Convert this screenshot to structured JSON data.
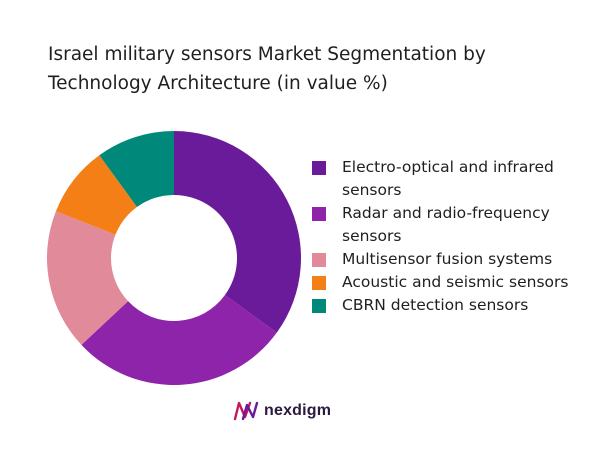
{
  "chart_data": {
    "type": "pie",
    "donut": true,
    "title": "Israel military sensors Market Segmentation by Technology Architecture (in value %)",
    "categories": [
      "Electro-optical and infrared sensors",
      "Radar and radio-frequency sensors",
      "Multisensor fusion systems",
      "Acoustic and seismic sensors",
      "CBRN detection sensors"
    ],
    "values": [
      35,
      28,
      18,
      9,
      10
    ],
    "colors": [
      "#6a1b9a",
      "#8e24aa",
      "#e08a9a",
      "#f57f17",
      "#00897b"
    ],
    "legend_position": "right"
  },
  "brand": {
    "name": "nexdigm",
    "logo_icon": "nexdigm-logo-icon"
  }
}
